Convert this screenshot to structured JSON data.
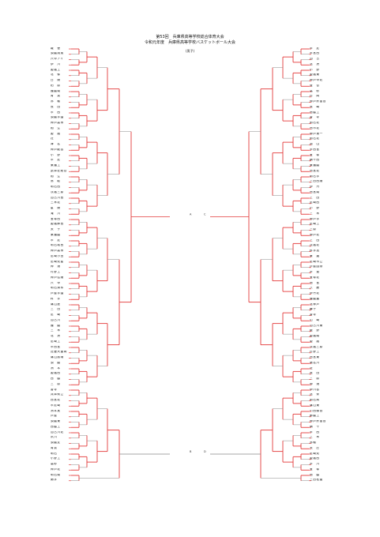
{
  "header": {
    "line1": "第53回　兵庫県高等学校総合体育大会",
    "line2": "令和元年度　兵庫県高等学校バスケットボール大会",
    "division": "(男子)"
  },
  "blocks": [
    "A",
    "C",
    "B",
    "D"
  ],
  "left_teams": [
    "報　徳",
    "須磨翔風",
    "六甲アイ",
    "伊　川",
    "姫路工",
    "北　條",
    "白　陵",
    "柏　原",
    "播磨南",
    "育　英",
    "赤　穂",
    "長　田",
    "市　西",
    "須磨学園",
    "神戸高専",
    "相　生",
    "姫　路",
    "社",
    "津　名",
    "神戸龍谷",
    "小　野",
    "市　尼",
    "東播工",
    "武庫荘総合",
    "相　生",
    "鳥　取",
    "明石西",
    "淡路三原",
    "加古川西",
    "三木北",
    "星　陵",
    "滝　川",
    "宝塚西",
    "姫路飾西",
    "太　子",
    "東播磨",
    "市　尼",
    "明石城西",
    "神戸高専",
    "尼崎小田",
    "尼崎双星",
    "神　港",
    "村野工",
    "神戸弘陵",
    "六　甲",
    "明石清水",
    "芦屋学園",
    "科　学",
    "篠山産",
    "三　田",
    "尼　崎",
    "加古川",
    "播　磨",
    "三　木",
    "北　摂",
    "尼崎工",
    "市西宮",
    "近畿大豊岡",
    "篠山鳳鳴",
    "須　磨",
    "洲　本",
    "姫路西",
    "西　脇",
    "三　原",
    "香寺",
    "兵庫県立",
    "西宮北",
    "市尼崎",
    "洲本実",
    "芦屋",
    "須磨東",
    "西脇工",
    "加古川北",
    "夙川",
    "須磨友",
    "育英",
    "明石",
    "小野工",
    "高砂",
    "神戸北",
    "明石南",
    "関学"
  ],
  "right_teams": [
    "市　尼",
    "市宮西",
    "加　古",
    "北　摂",
    "小　野",
    "姫路東",
    "神戸甲北",
    "葺　合",
    "高　砂",
    "村　岡",
    "神戸鈴蘭台",
    "長　崎",
    "西脇工",
    "香　寺",
    "明石北",
    "西市北",
    "神戸第一",
    "明石北",
    "旭　山",
    "市西宮",
    "宝　塚",
    "網干西",
    "東播磨",
    "西宮北",
    "明石学",
    "三田西陵",
    "伊　丹",
    "西宮南",
    "三　田",
    "尼崎西",
    "小　野",
    "三　木",
    "神戸学",
    "尼崎工",
    "三原",
    "神戸北",
    "三　田",
    "淡路北",
    "科学技",
    "東　灘",
    "尼崎市立",
    "芦屋国際",
    "市　葺",
    "宝塚北",
    "西　宮",
    "八　鹿",
    "伊丹北",
    "播磨農",
    "北神戸",
    "舞子",
    "香寺",
    "山　崎",
    "加古川東",
    "龍　野",
    "姫路南",
    "姫　路",
    "淡路三原",
    "村野工",
    "西宮東",
    "猪名川",
    "社",
    "長　田",
    "三　原",
    "神　港",
    "伊川谷",
    "北　条",
    "明石商",
    "篠山東",
    "川西緑台",
    "飾磨工",
    "神戸鈴蘭台",
    "網　干",
    "市　西",
    "三　木",
    "赤穂",
    "大　庄",
    "尼崎双",
    "姫路西",
    "市　川",
    "宝　塚",
    "西　脇",
    "三田松聖"
  ]
}
